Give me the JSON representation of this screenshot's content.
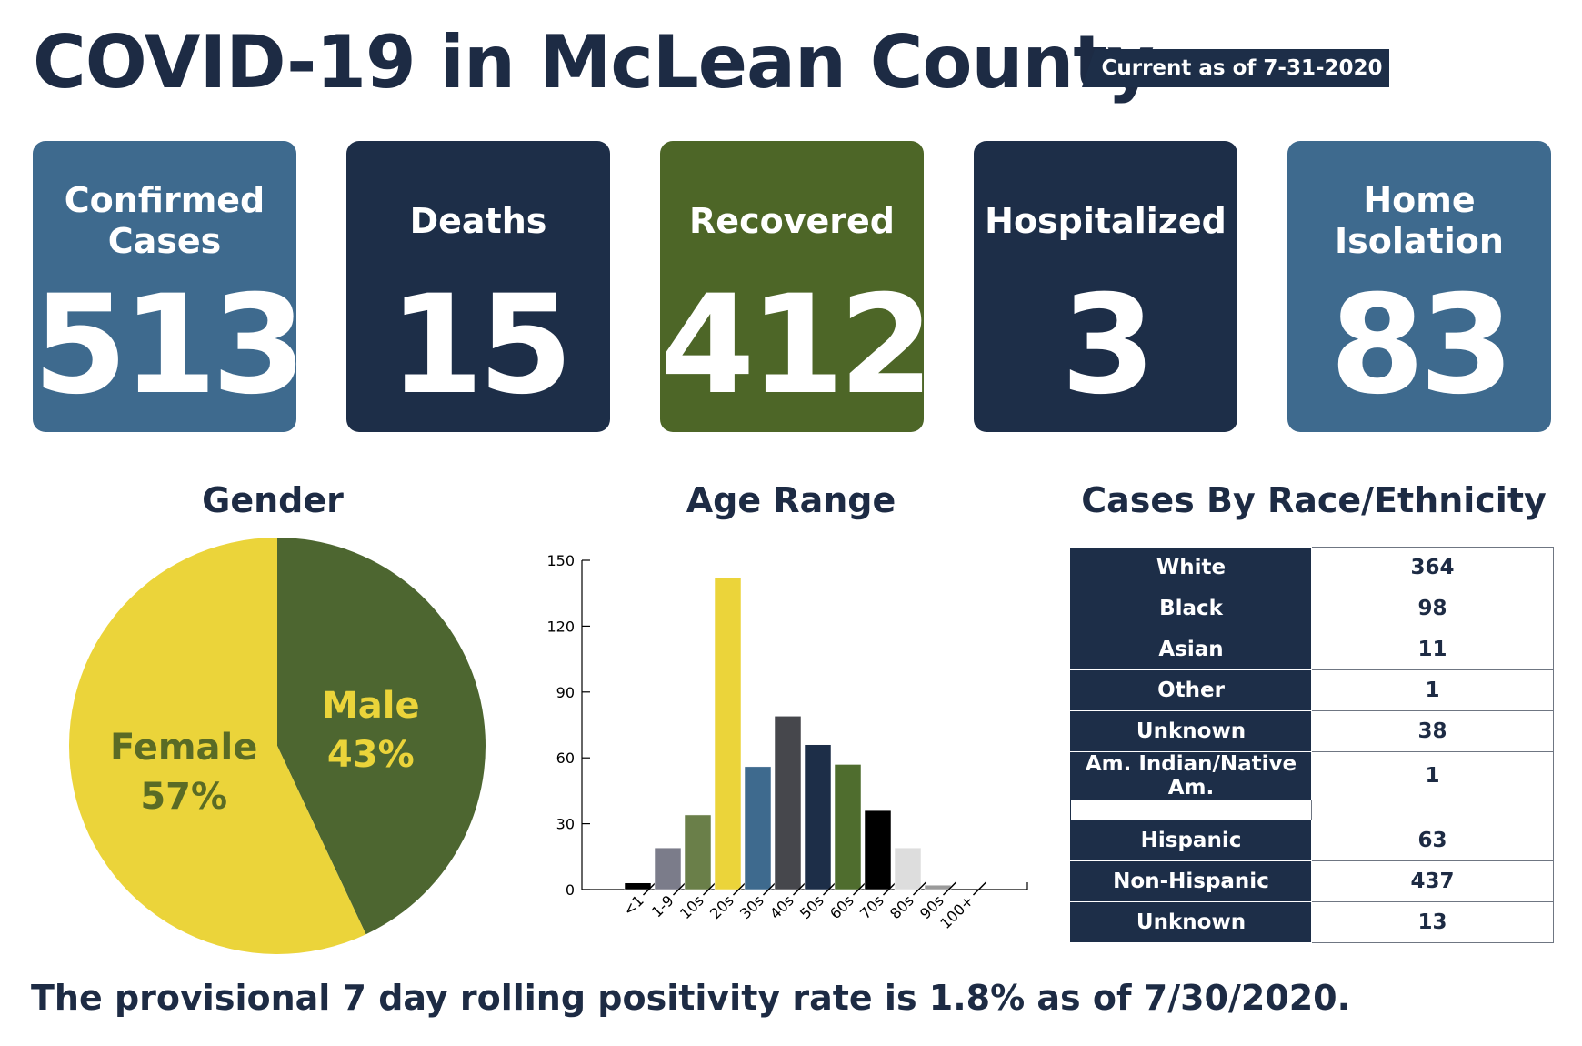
{
  "header": {
    "title": "COVID-19 in McLean County",
    "current_as_of": "Current as of 7-31-2020"
  },
  "stats": [
    {
      "label": "Confirmed\nCases",
      "value": "513",
      "color": "#3e6a8e"
    },
    {
      "label": "Deaths",
      "value": "15",
      "color": "#1d2e48"
    },
    {
      "label": "Recovered",
      "value": "412",
      "color": "#4d6627"
    },
    {
      "label": "Hospitalized",
      "value": "3",
      "color": "#1d2e48"
    },
    {
      "label": "Home\nIsolation",
      "value": "83",
      "color": "#3e6a8e"
    }
  ],
  "sections": {
    "gender": "Gender",
    "age": "Age Range",
    "race": "Cases By Race/Ethnicity"
  },
  "chart_data": [
    {
      "type": "pie",
      "title": "Gender",
      "slices": [
        {
          "label": "Male",
          "percent_label": "43%",
          "value": 43,
          "color": "#4d6630",
          "text_color": "#ebd43a"
        },
        {
          "label": "Female",
          "percent_label": "57%",
          "value": 57,
          "color": "#ebd43a",
          "text_color": "#5a6b25"
        }
      ]
    },
    {
      "type": "bar",
      "title": "Age Range",
      "categories": [
        "<1",
        "1-9",
        "10s",
        "20s",
        "30s",
        "40s",
        "50s",
        "60s",
        "70s",
        "80s",
        "90s",
        "100+"
      ],
      "values": [
        3,
        19,
        34,
        142,
        56,
        79,
        66,
        57,
        36,
        19,
        2,
        0
      ],
      "colors": [
        "#000000",
        "#7b7c8a",
        "#6a7f49",
        "#ebd43a",
        "#3e6a8e",
        "#46474c",
        "#1d2e48",
        "#4f6d2e",
        "#000000",
        "#dddddd",
        "#9a9a9a",
        "#cccccc"
      ],
      "yticks": [
        0,
        30,
        60,
        90,
        120,
        150
      ],
      "ylim": [
        0,
        150
      ],
      "xlabel": "",
      "ylabel": ""
    },
    {
      "type": "table",
      "title": "Cases By Race/Ethnicity",
      "race_rows": [
        {
          "label": "White",
          "value": "364"
        },
        {
          "label": "Black",
          "value": "98"
        },
        {
          "label": "Asian",
          "value": "11"
        },
        {
          "label": "Other",
          "value": "1"
        },
        {
          "label": "Unknown",
          "value": "38"
        },
        {
          "label": "Am. Indian/Native Am.",
          "value": "1"
        }
      ],
      "ethnicity_rows": [
        {
          "label": "Hispanic",
          "value": "63"
        },
        {
          "label": "Non-Hispanic",
          "value": "437"
        },
        {
          "label": "Unknown",
          "value": "13"
        }
      ]
    }
  ],
  "footnote": "The provisional 7 day rolling positivity rate is 1.8% as of 7/30/2020."
}
